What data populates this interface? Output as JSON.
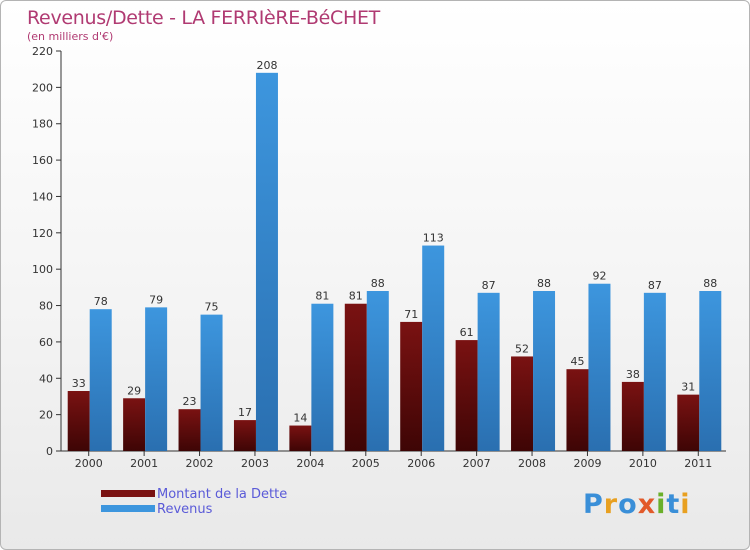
{
  "chart_data": {
    "type": "bar",
    "title": "Revenus/Dette - LA FERRIèRE-BéCHET",
    "subtitle": "(en milliers d'€)",
    "categories": [
      "2000",
      "2001",
      "2002",
      "2003",
      "2004",
      "2005",
      "2006",
      "2007",
      "2008",
      "2009",
      "2010",
      "2011"
    ],
    "series": [
      {
        "name": "Montant de la Dette",
        "color": "#7a1212",
        "values": [
          33,
          29,
          23,
          17,
          14,
          81,
          71,
          61,
          52,
          45,
          38,
          31
        ]
      },
      {
        "name": "Revenus",
        "color": "#3d96de",
        "values": [
          78,
          79,
          75,
          208,
          81,
          88,
          113,
          87,
          88,
          92,
          87,
          88
        ]
      }
    ],
    "ylim": [
      0,
      220
    ],
    "yticks": [
      0,
      20,
      40,
      60,
      80,
      100,
      120,
      140,
      160,
      180,
      200,
      220
    ],
    "grid": false,
    "legend": "bottom-left"
  },
  "logo": {
    "text": "Proxiti",
    "letters": [
      {
        "ch": "P",
        "color": "#3a8fd8"
      },
      {
        "ch": "r",
        "color": "#e8a020"
      },
      {
        "ch": "o",
        "color": "#3a8fd8"
      },
      {
        "ch": "x",
        "color": "#e25a2a"
      },
      {
        "ch": "i",
        "color": "#6ab02a"
      },
      {
        "ch": "t",
        "color": "#3a8fd8"
      },
      {
        "ch": "i",
        "color": "#e8a020"
      }
    ]
  }
}
